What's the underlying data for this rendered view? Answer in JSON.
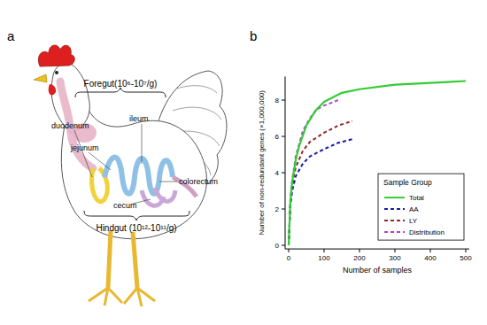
{
  "panel_labels": [
    "a",
    "b"
  ],
  "diagram": {
    "foregut": "Foregut(10⁶-10⁷/g)",
    "hindgut": "Hindgut (10¹²-10¹¹/g)",
    "organs": [
      "duodenum",
      "jejunum",
      "ileum",
      "colorectum",
      "cecum"
    ]
  },
  "chart_data": {
    "type": "line",
    "x_label": "Number of samples",
    "y_label": "Number of non-redundant genes (×1,000,000)",
    "legend_title": "Sample Group",
    "legend": "bottom-right",
    "grid": false,
    "xlim": [
      -10,
      510
    ],
    "xticks": [
      0,
      100,
      200,
      300,
      400,
      500
    ],
    "ylim": [
      -0.2,
      9.3
    ],
    "yticks": [
      0,
      2,
      4,
      6,
      8
    ],
    "series": [
      {
        "name": "Total",
        "color": "#33cc33",
        "line_style": "solid",
        "x": [
          0,
          5,
          10,
          20,
          30,
          50,
          75,
          100,
          150,
          200,
          300,
          400,
          500
        ],
        "values": [
          0,
          2.5,
          3.5,
          4.7,
          5.5,
          6.6,
          7.4,
          7.9,
          8.4,
          8.6,
          8.85,
          8.95,
          9.05
        ]
      },
      {
        "name": "AA",
        "color": "#1a1aa8",
        "line_style": "dashed",
        "x": [
          0,
          5,
          10,
          20,
          40,
          60,
          100,
          140,
          180
        ],
        "values": [
          0,
          2.2,
          3.0,
          3.8,
          4.5,
          4.9,
          5.3,
          5.65,
          5.85
        ]
      },
      {
        "name": "LY",
        "color": "#8b2a2a",
        "line_style": "dashed",
        "x": [
          0,
          5,
          10,
          20,
          40,
          60,
          100,
          140,
          180
        ],
        "values": [
          0,
          2.4,
          3.3,
          4.3,
          5.2,
          5.7,
          6.2,
          6.6,
          6.85
        ]
      },
      {
        "name": "Distribution",
        "color": "#b040d0",
        "line_style": "dashed",
        "x": [
          0,
          5,
          10,
          20,
          40,
          60,
          80,
          100,
          140
        ],
        "values": [
          0,
          2.6,
          3.6,
          4.9,
          6.3,
          7.0,
          7.5,
          7.7,
          8.0
        ]
      }
    ]
  }
}
